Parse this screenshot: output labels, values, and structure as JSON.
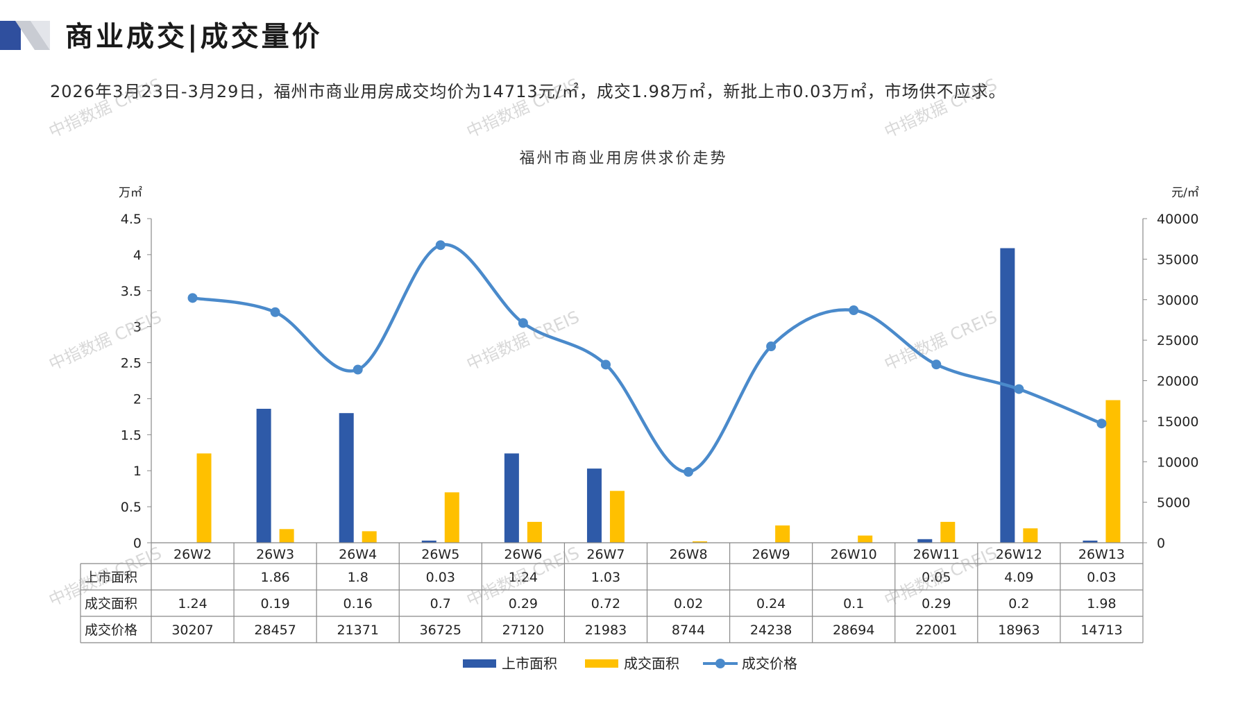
{
  "header": {
    "title": "商业成交|成交量价",
    "summary": "2026年3月23日-3月29日，福州市商业用房成交均价为14713元/㎡，成交1.98万㎡，新批上市0.03万㎡，市场供不应求。"
  },
  "watermark_text": "中指数据 CREIS",
  "colors": {
    "supply": "#2e5aa8",
    "deal": "#ffc000",
    "price": "#4a8acb",
    "grid": "#888888",
    "header_navy": "#2f4f9e",
    "header_gray": "#c9ccd3"
  },
  "chart_data": {
    "type": "bar",
    "title": "福州市商业用房供求价走势",
    "categories": [
      "26W2",
      "26W3",
      "26W4",
      "26W5",
      "26W6",
      "26W7",
      "26W8",
      "26W9",
      "26W10",
      "26W11",
      "26W12",
      "26W13"
    ],
    "series": [
      {
        "name": "上市面积",
        "kind": "bar",
        "axis": "left",
        "values": [
          null,
          1.86,
          1.8,
          0.03,
          1.24,
          1.03,
          null,
          null,
          null,
          0.05,
          4.09,
          0.03
        ],
        "labels": [
          "",
          "1.86",
          "1.8",
          "0.03",
          "1.24",
          "1.03",
          "",
          "",
          "",
          "0.05",
          "4.09",
          "0.03"
        ]
      },
      {
        "name": "成交面积",
        "kind": "bar",
        "axis": "left",
        "values": [
          1.24,
          0.19,
          0.16,
          0.7,
          0.29,
          0.72,
          0.02,
          0.24,
          0.1,
          0.29,
          0.2,
          1.98
        ],
        "labels": [
          "1.24",
          "0.19",
          "0.16",
          "0.7",
          "0.29",
          "0.72",
          "0.02",
          "0.24",
          "0.1",
          "0.29",
          "0.2",
          "1.98"
        ]
      },
      {
        "name": "成交价格",
        "kind": "line",
        "axis": "right",
        "values": [
          30207,
          28457,
          21371,
          36725,
          27120,
          21983,
          8744,
          24238,
          28694,
          22001,
          18963,
          14713
        ],
        "labels": [
          "30207",
          "28457",
          "21371",
          "36725",
          "27120",
          "21983",
          "8744",
          "24238",
          "28694",
          "22001",
          "18963",
          "14713"
        ]
      }
    ],
    "left_axis": {
      "unit": "万㎡",
      "min": 0,
      "max": 4.5,
      "ticks": [
        "0",
        "0.5",
        "1",
        "1.5",
        "2",
        "2.5",
        "3",
        "3.5",
        "4",
        "4.5"
      ]
    },
    "right_axis": {
      "unit": "元/㎡",
      "min": 0,
      "max": 40000,
      "ticks": [
        "0",
        "5000",
        "10000",
        "15000",
        "20000",
        "25000",
        "30000",
        "35000",
        "40000"
      ]
    },
    "table": true,
    "legend_position": "bottom"
  }
}
